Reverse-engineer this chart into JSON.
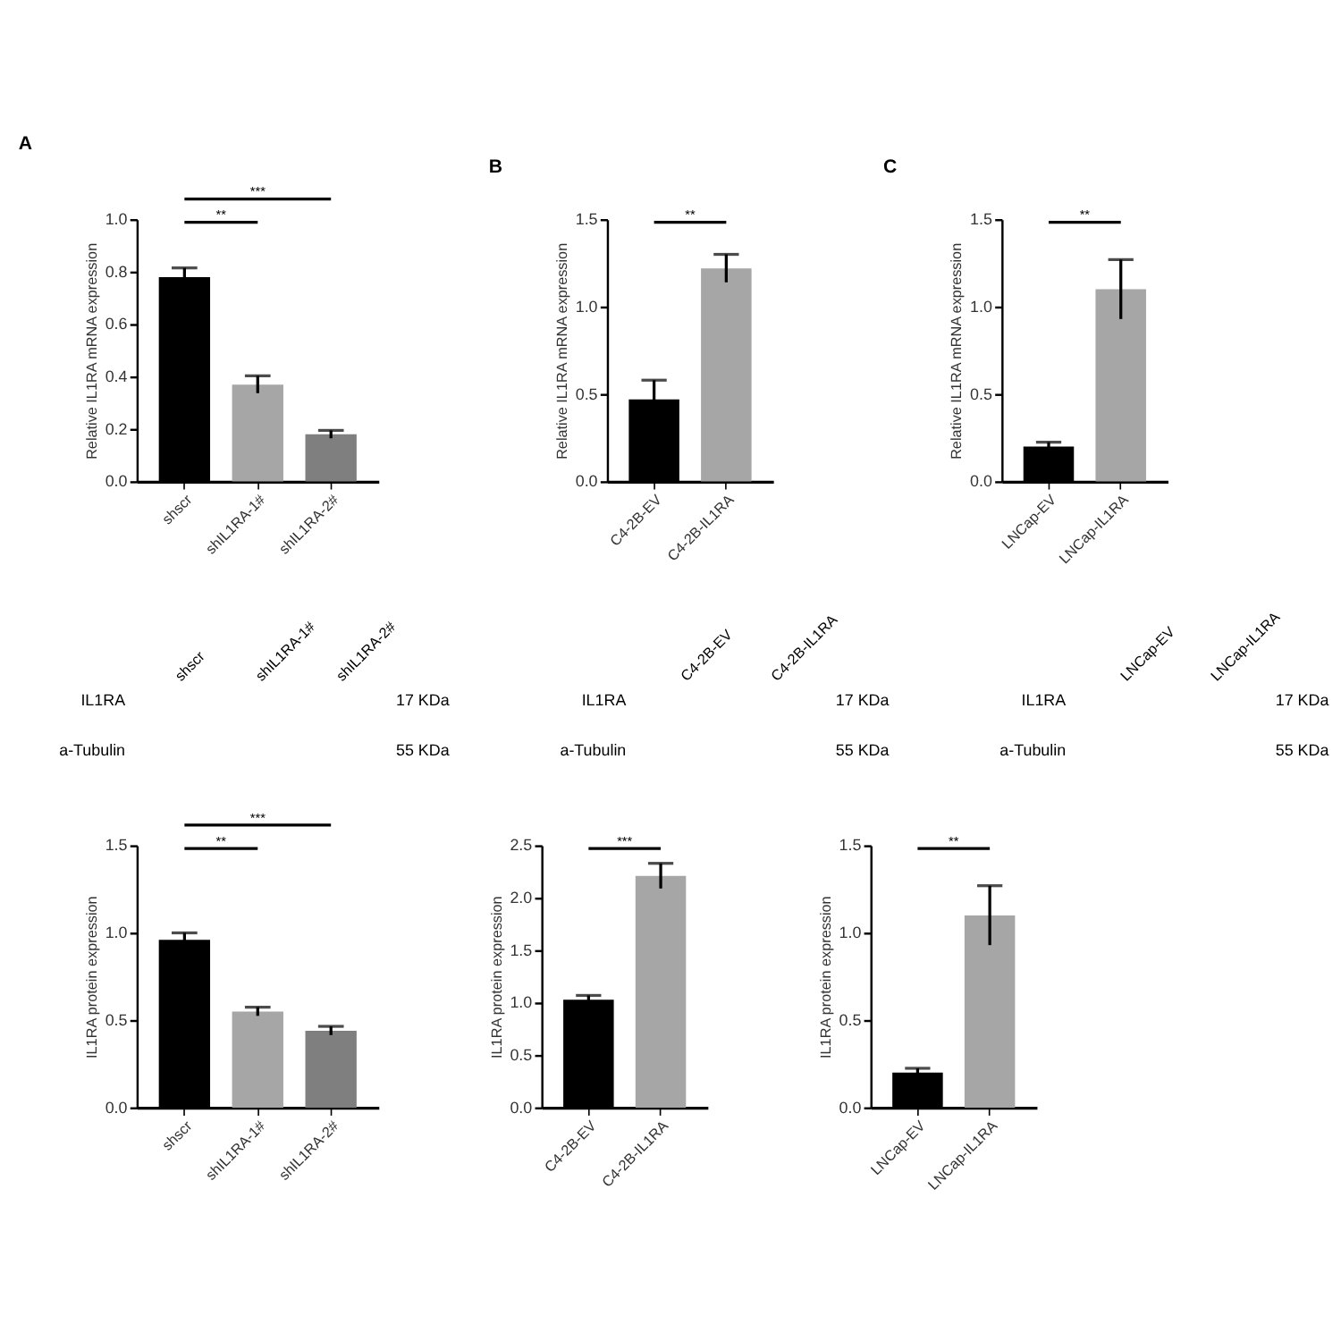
{
  "chart_data": [
    {
      "type": "bar",
      "title": "A",
      "ylabel": "Relative IL1RA mRNA expression",
      "categories": [
        "shscr",
        "shIL1RA-1#",
        "shIL1RA-2#"
      ],
      "colors": [
        "#000000",
        "#a6a6a6",
        "#7f7f7f"
      ],
      "values": [
        0.78,
        0.37,
        0.18
      ],
      "errors": [
        0.035,
        0.033,
        0.015
      ],
      "ylim": [
        0,
        1.0
      ],
      "yticks": [
        {
          "value": 0,
          "label": "0.0"
        },
        0.2,
        0.4,
        0.6,
        0.8,
        {
          "value": 1,
          "label": "1.0"
        }
      ],
      "grid": false,
      "annotations": [
        "**",
        "***"
      ]
    },
    {
      "type": "bar",
      "title": "B",
      "ylabel": "Relative IL1RA mRNA expression",
      "categories": [
        "C4-2B-EV",
        "C4-2B-IL1RA"
      ],
      "colors": [
        "#000000",
        "#a0a0a4"
      ],
      "values": [
        0.47,
        1.22
      ],
      "errors": [
        0.11,
        0.08
      ],
      "ylim": [
        0,
        1.5
      ],
      "yticks": [
        {
          "value": 0,
          "label": "0.0"
        },
        0.5,
        {
          "value": 1,
          "label": "1.0"
        },
        1.5
      ],
      "grid": false,
      "annotations": [
        "**"
      ]
    },
    {
      "type": "bar",
      "title": "C",
      "ylabel": "Relative IL1RA mRNA expression",
      "categories": [
        "LNCap-EV",
        "LNCap-IL1RA"
      ],
      "colors": [
        "#000000",
        "#a0a0a4"
      ],
      "values": [
        0.2,
        1.1
      ],
      "errors": [
        0.025,
        0.17
      ],
      "ylim": [
        0,
        1.5
      ],
      "yticks": [
        {
          "value": 0,
          "label": "0.0"
        },
        0.5,
        {
          "value": 1,
          "label": "1.0"
        },
        1.5
      ],
      "grid": false,
      "annotations": [
        "**"
      ]
    },
    {
      "type": "other",
      "categories": [
        "shscr",
        "shIL1RA-1#",
        "shIL1RA-2#"
      ],
      "annotations": [
        "IL1RA",
        "17 KDa",
        "a-Tubulin",
        "55 KDa"
      ]
    },
    {
      "type": "other",
      "categories": [
        "C4-2B-EV",
        "C4-2B-IL1RA"
      ],
      "annotations": [
        "IL1RA",
        "17 KDa",
        "a-Tubulin",
        "55 KDa"
      ]
    },
    {
      "type": "other",
      "categories": [
        "LNCap-EV",
        "LNCap-IL1RA"
      ],
      "annotations": [
        "IL1RA",
        "17 KDa",
        "a-Tubulin",
        "55 KDa"
      ]
    },
    {
      "type": "bar",
      "ylabel": "IL1RA protein expression",
      "categories": [
        "shscr",
        "shIL1RA-1#",
        "shIL1RA-2#"
      ],
      "colors": [
        "#000000",
        "#a6a6a6",
        "#7f7f7f"
      ],
      "values": [
        0.96,
        0.55,
        0.44
      ],
      "errors": [
        0.04,
        0.025,
        0.025
      ],
      "ylim": [
        0,
        1.5
      ],
      "yticks": [
        {
          "value": 0,
          "label": "0.0"
        },
        0.5,
        {
          "value": 1,
          "label": "1.0"
        },
        1.5
      ],
      "grid": false,
      "annotations": [
        "**",
        "***"
      ]
    },
    {
      "type": "bar",
      "ylabel": "IL1RA protein expression",
      "categories": [
        "C4-2B-EV",
        "C4-2B-IL1RA"
      ],
      "colors": [
        "#000000",
        "#a0a0a4"
      ],
      "values": [
        1.03,
        2.21
      ],
      "errors": [
        0.04,
        0.12
      ],
      "ylim": [
        0,
        2.5
      ],
      "yticks": [
        {
          "value": 0,
          "label": "0.0"
        },
        0.5,
        {
          "value": 1,
          "label": "1.0"
        },
        1.5,
        {
          "value": 2,
          "label": "2.0"
        },
        2.5
      ],
      "grid": false,
      "annotations": [
        "***"
      ]
    },
    {
      "type": "bar",
      "ylabel": "IL1RA  protein expression",
      "categories": [
        "LNCap-EV",
        "LNCap-IL1RA"
      ],
      "colors": [
        "#000000",
        "#a0a0a4"
      ],
      "values": [
        0.2,
        1.1
      ],
      "errors": [
        0.025,
        0.17
      ],
      "ylim": [
        0,
        1.5
      ],
      "yticks": [
        {
          "value": 0,
          "label": "0.0"
        },
        0.5,
        {
          "value": 1,
          "label": "1.0"
        },
        1.5
      ],
      "grid": false,
      "annotations": [
        "**"
      ]
    }
  ]
}
